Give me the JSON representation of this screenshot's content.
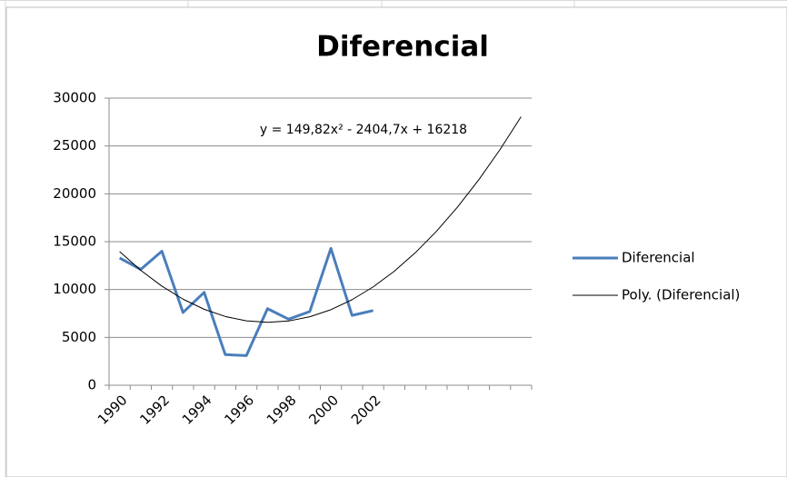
{
  "chart_data": {
    "type": "line",
    "title": "Diferencial",
    "categories": [
      "1990",
      null,
      "1992",
      null,
      "1994",
      null,
      "1996",
      null,
      "1998",
      null,
      "2000",
      null,
      "2002",
      null,
      null,
      null,
      null,
      null,
      null,
      null
    ],
    "series": [
      {
        "name": "Diferencial",
        "color": "#4a7ebb",
        "width": 3,
        "values": [
          13300,
          12100,
          14000,
          7600,
          9700,
          3200,
          3100,
          8000,
          6900,
          7700,
          14300,
          7300,
          7800,
          null,
          null,
          null,
          null,
          null,
          null,
          null
        ]
      },
      {
        "name": "Poly. (Diferencial)",
        "color": "#000000",
        "width": 1,
        "values": [
          13963,
          12008,
          10352,
          8996,
          7940,
          7183,
          6726,
          6569,
          6711,
          7153,
          7895,
          8936,
          10277,
          11917,
          13857,
          16097,
          18636,
          21475,
          24614,
          28052
        ]
      }
    ],
    "equation": "y = 149,82x² - 2404,7x + 16218",
    "ylim": [
      0,
      30000
    ],
    "yticks": [
      0,
      5000,
      10000,
      15000,
      20000,
      25000,
      30000
    ],
    "grid": true,
    "legend": "right"
  }
}
